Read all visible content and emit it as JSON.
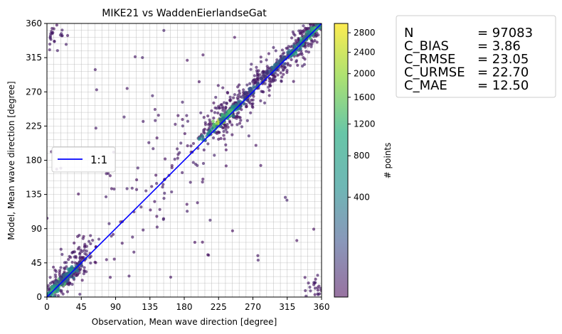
{
  "chart_data": {
    "type": "scatter",
    "title": "MIKE21 vs WaddenEierlandseGat",
    "xlabel": "Observation, Mean wave direction [degree]",
    "ylabel": "Model, Mean wave direction [degree]",
    "xlim": [
      0,
      360
    ],
    "ylim": [
      0,
      360
    ],
    "x_ticks": [
      "0",
      "45",
      "90",
      "135",
      "180",
      "225",
      "270",
      "315",
      "360"
    ],
    "y_ticks": [
      "0",
      "45",
      "90",
      "135",
      "180",
      "225",
      "270",
      "315",
      "360"
    ],
    "x_tick_values": [
      0,
      45,
      90,
      135,
      180,
      225,
      270,
      315,
      360
    ],
    "y_tick_values": [
      0,
      45,
      90,
      135,
      180,
      225,
      270,
      315,
      360
    ],
    "grid": true,
    "grid_minor_step": 9,
    "colormap": "viridis",
    "colorbar": {
      "label": "# points",
      "ticks": [
        "400",
        "800",
        "1200",
        "1600",
        "2000",
        "2400",
        "2800"
      ],
      "tick_values": [
        400,
        800,
        1200,
        1600,
        2000,
        2400,
        2800
      ],
      "range": [
        0,
        3000
      ]
    },
    "legend": {
      "placement": "center-left",
      "entries": [
        {
          "label": "1:1",
          "color": "#0000ff"
        }
      ]
    },
    "reference_line": {
      "name": "1:1",
      "x": [
        0,
        360
      ],
      "y": [
        0,
        360
      ],
      "color": "#0000ff"
    },
    "stats": [
      {
        "name": "N",
        "value": "= 97083"
      },
      {
        "name": "C_BIAS",
        "value": "= 3.86"
      },
      {
        "name": "C_RMSE",
        "value": "= 23.05"
      },
      {
        "name": "C_URMSE",
        "value": "= 22.70"
      },
      {
        "name": "C_MAE",
        "value": "= 12.50"
      }
    ],
    "point_clusters": [
      {
        "x": 22,
        "y": 22,
        "sx": 14,
        "sy": 14,
        "n": 160,
        "corr": 0.8
      },
      {
        "x": 40,
        "y": 55,
        "sx": 14,
        "sy": 16,
        "n": 70,
        "corr": 0.5
      },
      {
        "x": 232,
        "y": 236,
        "sx": 18,
        "sy": 16,
        "n": 150,
        "corr": 0.6
      },
      {
        "x": 290,
        "y": 292,
        "sx": 24,
        "sy": 22,
        "n": 200,
        "corr": 0.85
      },
      {
        "x": 340,
        "y": 342,
        "sx": 12,
        "sy": 12,
        "n": 120,
        "corr": 0.7
      },
      {
        "x": 180,
        "y": 182,
        "sx": 60,
        "sy": 60,
        "n": 80,
        "corr": 0.9
      },
      {
        "x": 8,
        "y": 345,
        "sx": 8,
        "sy": 12,
        "n": 30,
        "corr": 0.0
      },
      {
        "x": 352,
        "y": 10,
        "sx": 8,
        "sy": 10,
        "n": 30,
        "corr": 0.0
      },
      {
        "x": 180,
        "y": 180,
        "sx": 110,
        "sy": 110,
        "n": 90,
        "corr": 0.0
      }
    ],
    "density_ridge": [
      {
        "x": 18,
        "y": 18,
        "density": 2400
      },
      {
        "x": 32,
        "y": 34,
        "density": 1500
      },
      {
        "x": 8,
        "y": 8,
        "density": 1900
      },
      {
        "x": 226,
        "y": 230,
        "density": 2900
      },
      {
        "x": 240,
        "y": 242,
        "density": 2200
      },
      {
        "x": 300,
        "y": 303,
        "density": 1200
      },
      {
        "x": 322,
        "y": 324,
        "density": 1700
      },
      {
        "x": 340,
        "y": 342,
        "density": 2300
      },
      {
        "x": 352,
        "y": 353,
        "density": 2000
      },
      {
        "x": 272,
        "y": 275,
        "density": 1000
      }
    ]
  }
}
